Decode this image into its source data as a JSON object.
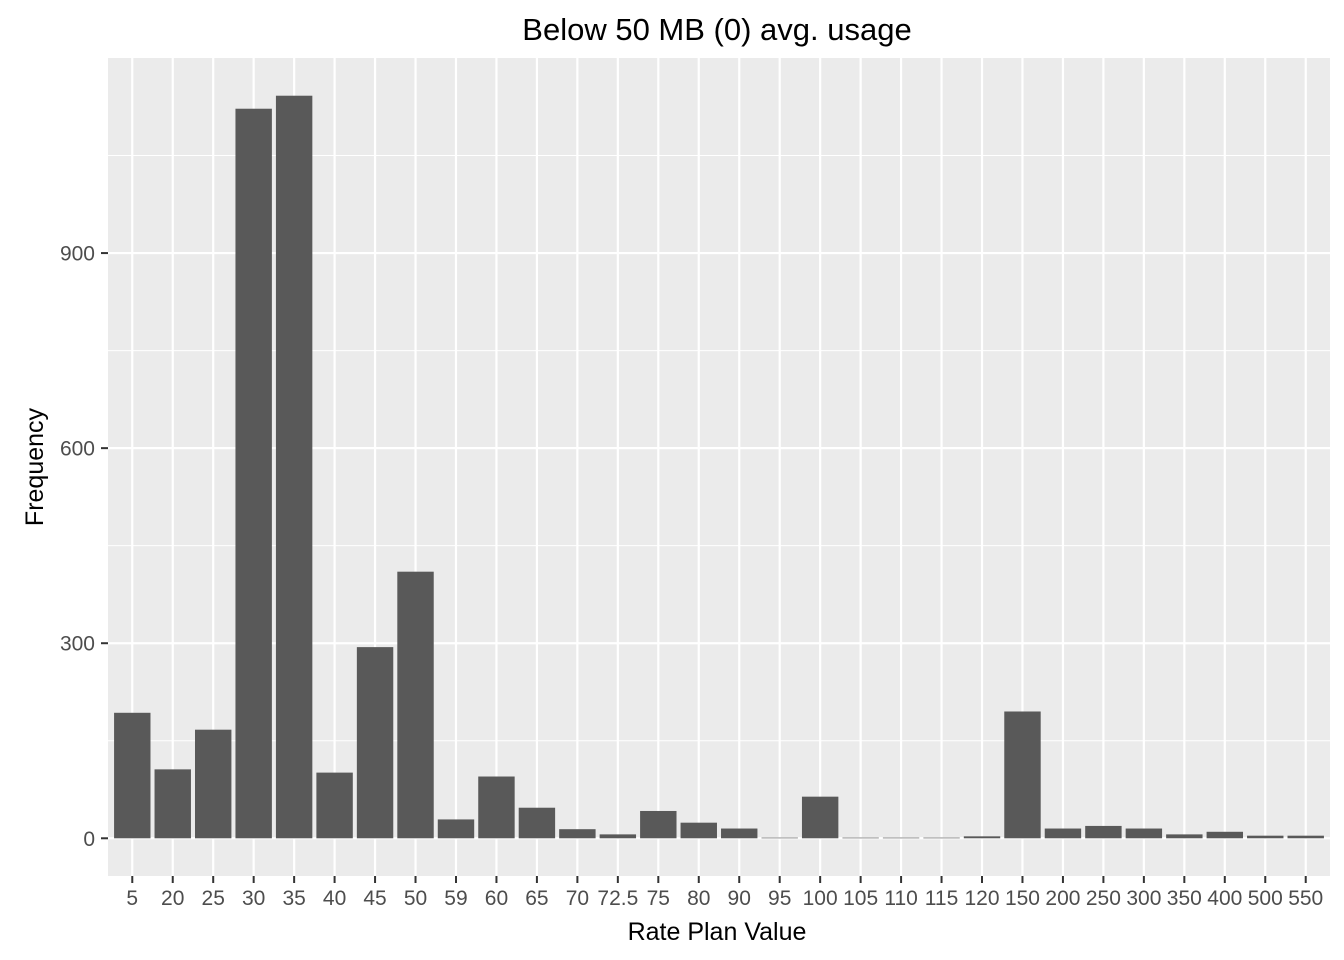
{
  "chart_data": {
    "type": "bar",
    "title": "Below 50 MB (0) avg. usage",
    "xlabel": "Rate Plan Value",
    "ylabel": "Frequency",
    "categories": [
      "5",
      "20",
      "25",
      "30",
      "35",
      "40",
      "45",
      "50",
      "59",
      "60",
      "65",
      "70",
      "72.5",
      "75",
      "80",
      "90",
      "95",
      "100",
      "105",
      "110",
      "115",
      "120",
      "150",
      "200",
      "250",
      "300",
      "350",
      "400",
      "500",
      "550"
    ],
    "values": [
      193,
      106,
      167,
      1122,
      1142,
      101,
      294,
      410,
      29,
      95,
      47,
      14,
      6,
      42,
      24,
      15,
      1,
      64,
      1,
      1,
      1,
      3,
      195,
      15,
      19,
      15,
      6,
      10,
      4,
      4
    ],
    "ylim": [
      -58,
      1200
    ],
    "yticks": [
      0,
      300,
      600,
      900
    ],
    "grid": true,
    "colors": {
      "panel": "#EBEBEB",
      "grid": "#FFFFFF",
      "bar": "#595959",
      "tick": "#333333",
      "tick_label": "#4D4D4D"
    }
  }
}
